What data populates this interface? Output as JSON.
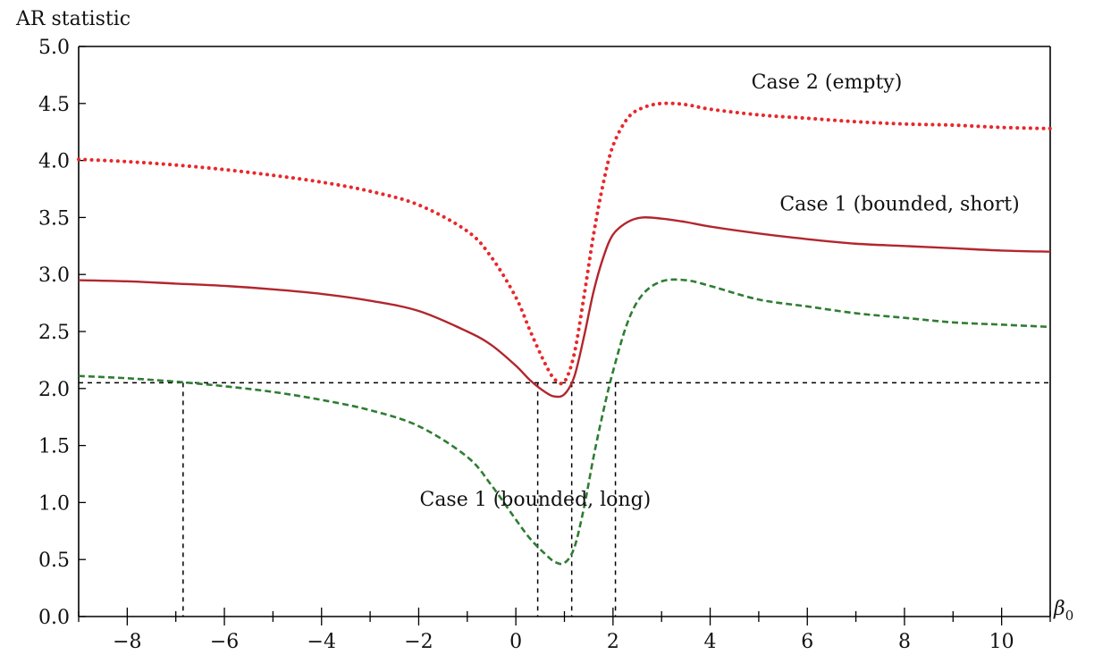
{
  "chart_data": {
    "type": "line",
    "title": "",
    "ylabel": "AR statistic",
    "xlabel_base": "β",
    "xlabel_sub": "0",
    "xlim": [
      -9,
      11
    ],
    "ylim": [
      0,
      5
    ],
    "x_ticks": [
      -8,
      -6,
      -4,
      -2,
      0,
      2,
      4,
      6,
      8,
      10
    ],
    "x_tick_labels": [
      "−8",
      "−6",
      "−4",
      "−2",
      "0",
      "2",
      "4",
      "6",
      "8",
      "10"
    ],
    "y_ticks": [
      0,
      0.5,
      1,
      1.5,
      2,
      2.5,
      3,
      3.5,
      4,
      4.5,
      5
    ],
    "y_tick_labels": [
      "0.0",
      "0.5",
      "1.0",
      "1.5",
      "2.0",
      "2.5",
      "3.0",
      "3.5",
      "4.0",
      "4.5",
      "5.0"
    ],
    "grid": false,
    "critical_value": 2.05,
    "interval_bounds": [
      -6.85,
      0.45,
      1.15,
      2.05
    ],
    "series": [
      {
        "name": "Case 2 (empty)",
        "style": "dotted",
        "color": "#e8282b",
        "x": [
          -9,
          -8,
          -7,
          -6,
          -5,
          -4,
          -3,
          -2,
          -1,
          -0.5,
          0,
          0.3,
          0.6,
          0.8,
          1,
          1.2,
          1.4,
          1.6,
          1.8,
          2,
          2.3,
          2.6,
          3,
          3.5,
          4,
          5,
          6,
          7,
          8,
          9,
          10,
          11
        ],
        "y": [
          4.01,
          3.99,
          3.96,
          3.92,
          3.87,
          3.81,
          3.73,
          3.61,
          3.38,
          3.15,
          2.8,
          2.5,
          2.22,
          2.08,
          2.06,
          2.3,
          2.8,
          3.35,
          3.8,
          4.13,
          4.37,
          4.46,
          4.5,
          4.49,
          4.45,
          4.4,
          4.37,
          4.34,
          4.32,
          4.31,
          4.29,
          4.28
        ]
      },
      {
        "name": "Case 1 (bounded, short)",
        "style": "solid",
        "color": "#b2262d",
        "x": [
          -9,
          -8,
          -7,
          -6,
          -5,
          -4,
          -3,
          -2,
          -1,
          -0.5,
          0,
          0.3,
          0.6,
          0.8,
          1,
          1.2,
          1.4,
          1.6,
          1.8,
          2,
          2.3,
          2.6,
          3,
          3.5,
          4,
          5,
          6,
          7,
          8,
          9,
          10,
          11
        ],
        "y": [
          2.95,
          2.94,
          2.92,
          2.9,
          2.87,
          2.83,
          2.77,
          2.68,
          2.5,
          2.38,
          2.2,
          2.07,
          1.97,
          1.93,
          1.95,
          2.1,
          2.45,
          2.85,
          3.15,
          3.35,
          3.46,
          3.5,
          3.49,
          3.46,
          3.42,
          3.36,
          3.31,
          3.27,
          3.25,
          3.23,
          3.21,
          3.2
        ]
      },
      {
        "name": "Case 1 (bounded, long)",
        "style": "dashed",
        "color": "#2e7d32",
        "x": [
          -9,
          -8,
          -7,
          -6,
          -5,
          -4,
          -3,
          -2,
          -1,
          -0.5,
          0,
          0.3,
          0.6,
          0.8,
          1,
          1.2,
          1.4,
          1.6,
          1.8,
          2,
          2.3,
          2.6,
          3,
          3.5,
          4,
          5,
          6,
          7,
          8,
          9,
          10,
          11
        ],
        "y": [
          2.11,
          2.09,
          2.06,
          2.02,
          1.97,
          1.9,
          1.81,
          1.67,
          1.4,
          1.15,
          0.85,
          0.68,
          0.55,
          0.48,
          0.47,
          0.6,
          0.95,
          1.4,
          1.8,
          2.15,
          2.58,
          2.82,
          2.94,
          2.95,
          2.9,
          2.78,
          2.72,
          2.66,
          2.62,
          2.58,
          2.56,
          2.54
        ]
      }
    ],
    "annotations": [
      {
        "text": "Case 2 (empty)",
        "x": 6.4,
        "y": 4.63
      },
      {
        "text": "Case 1 (bounded, short)",
        "x": 7.9,
        "y": 3.56
      },
      {
        "text": "Case 1 (bounded, long)",
        "x": 0.4,
        "y": 0.97
      }
    ]
  }
}
